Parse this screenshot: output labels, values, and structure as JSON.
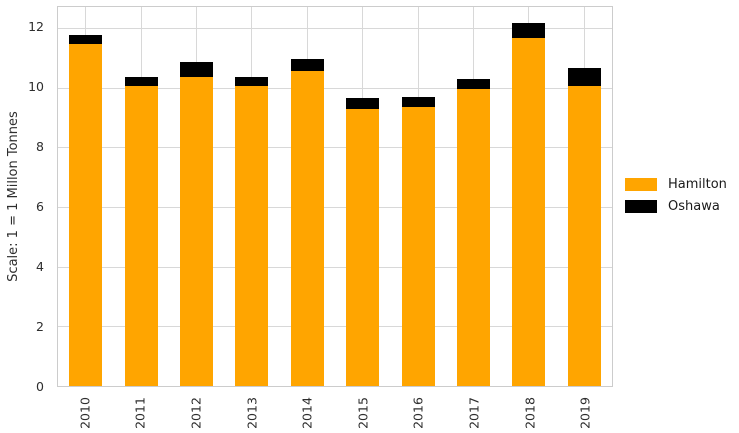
{
  "chart_data": {
    "type": "bar",
    "stacked": true,
    "title": "",
    "xlabel": "",
    "ylabel": "Scale: 1 = 1 Millon Tonnes",
    "categories": [
      "2010",
      "2011",
      "2012",
      "2013",
      "2014",
      "2015",
      "2016",
      "2017",
      "2018",
      "2019"
    ],
    "series": [
      {
        "name": "Hamilton",
        "color": "#FFA500",
        "values": [
          11.4,
          10.0,
          10.3,
          10.0,
          10.5,
          9.25,
          9.3,
          9.9,
          11.6,
          10.0
        ]
      },
      {
        "name": "Oshawa",
        "color": "#000000",
        "values": [
          0.3,
          0.3,
          0.5,
          0.3,
          0.4,
          0.35,
          0.35,
          0.35,
          0.5,
          0.6
        ]
      }
    ],
    "ylim": [
      0,
      12.7
    ],
    "yticks": [
      0,
      2,
      4,
      6,
      8,
      10,
      12
    ],
    "grid": true,
    "grid_color": "#d8d8d8",
    "frame_color": "#cccccc",
    "legend_position": "right"
  }
}
